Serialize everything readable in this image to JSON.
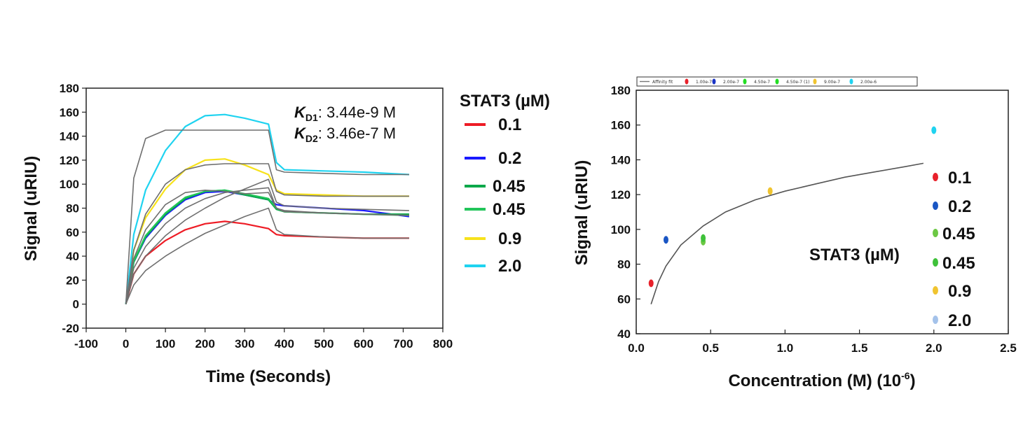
{
  "chart_data": [
    {
      "type": "line",
      "title": "",
      "xlabel": "Time (Seconds)",
      "ylabel": "Signal (uRIU)",
      "xlim": [
        -100,
        800
      ],
      "ylim": [
        -20,
        180
      ],
      "x_ticks": [
        "-100",
        "0",
        "100",
        "200",
        "300",
        "400",
        "500",
        "600",
        "700",
        "800"
      ],
      "y_ticks": [
        "-20",
        "0",
        "20",
        "40",
        "60",
        "80",
        "100",
        "120",
        "140",
        "160",
        "180"
      ],
      "legend_title": "STAT3 (µM)",
      "annotations": {
        "kd1_symbol": "K",
        "kd1_sub": "D1",
        "kd1_value": ": 3.44e-9 M",
        "kd2_symbol": "K",
        "kd2_sub": "D2",
        "kd2_value": ": 3.46e-7 M"
      },
      "injection_end": 360,
      "series": [
        {
          "name": "0.1",
          "color": "#ee1c25",
          "x": [
            0,
            20,
            50,
            100,
            150,
            200,
            250,
            300,
            360,
            380,
            400,
            500,
            600,
            715
          ],
          "values": [
            0,
            25,
            40,
            53,
            62,
            67,
            69,
            67,
            63,
            58,
            57,
            56,
            55,
            55
          ]
        },
        {
          "name": "0.2",
          "color": "#1a1aff",
          "x": [
            0,
            20,
            50,
            100,
            150,
            200,
            250,
            300,
            360,
            380,
            400,
            500,
            600,
            715
          ],
          "values": [
            0,
            35,
            55,
            74,
            87,
            93,
            94,
            91,
            87,
            83,
            82,
            80,
            78,
            73
          ]
        },
        {
          "name": "0.45",
          "color": "#0aa84a",
          "x": [
            0,
            20,
            50,
            100,
            150,
            200,
            250,
            300,
            360,
            380,
            400,
            500,
            600,
            715
          ],
          "values": [
            0,
            35,
            56,
            75,
            88,
            94,
            95,
            91,
            87,
            79,
            77,
            76,
            75,
            75
          ]
        },
        {
          "name": "0.45",
          "color": "#22c55a",
          "x": [
            0,
            20,
            50,
            100,
            150,
            200,
            250,
            300,
            360,
            380,
            400,
            500,
            600,
            715
          ],
          "values": [
            0,
            36,
            57,
            76,
            89,
            94,
            95,
            92,
            88,
            80,
            77,
            76,
            75,
            74
          ]
        },
        {
          "name": "0.9",
          "color": "#f7e21b",
          "x": [
            0,
            20,
            50,
            100,
            150,
            200,
            250,
            300,
            360,
            380,
            400,
            500,
            600,
            715
          ],
          "values": [
            0,
            45,
            72,
            96,
            112,
            120,
            121,
            116,
            108,
            95,
            92,
            91,
            90,
            90
          ]
        },
        {
          "name": "2.0",
          "color": "#1fd3f0",
          "x": [
            0,
            20,
            50,
            100,
            150,
            200,
            250,
            300,
            360,
            380,
            400,
            500,
            600,
            715
          ],
          "values": [
            0,
            58,
            95,
            128,
            148,
            157,
            158,
            155,
            150,
            118,
            112,
            111,
            110,
            108
          ]
        }
      ],
      "fit_curves": [
        {
          "x": [
            0,
            20,
            50,
            100,
            150,
            200,
            250,
            300,
            360,
            380,
            400,
            500,
            600,
            715
          ],
          "values": [
            0,
            105,
            138,
            145,
            145,
            145,
            145,
            145,
            145,
            112,
            110,
            109,
            108,
            108
          ]
        },
        {
          "x": [
            0,
            20,
            50,
            100,
            150,
            200,
            250,
            300,
            360,
            380,
            400,
            500,
            600,
            715
          ],
          "values": [
            0,
            45,
            75,
            100,
            112,
            116,
            117,
            117,
            117,
            94,
            91,
            90,
            90,
            90
          ]
        },
        {
          "x": [
            0,
            20,
            50,
            100,
            150,
            200,
            250,
            300,
            360,
            380,
            400,
            500,
            600,
            715
          ],
          "values": [
            0,
            38,
            62,
            83,
            93,
            95,
            94,
            92,
            93,
            80,
            78,
            76,
            75,
            74
          ]
        },
        {
          "x": [
            0,
            20,
            50,
            100,
            150,
            200,
            250,
            300,
            360,
            380,
            400,
            500,
            600,
            715
          ],
          "values": [
            0,
            30,
            48,
            67,
            80,
            88,
            93,
            95,
            97,
            80,
            77,
            76,
            75,
            74
          ]
        },
        {
          "x": [
            0,
            20,
            50,
            100,
            150,
            200,
            250,
            300,
            360,
            380,
            400,
            500,
            600,
            715
          ],
          "values": [
            0,
            25,
            40,
            57,
            70,
            80,
            89,
            96,
            104,
            85,
            82,
            80,
            79,
            78
          ]
        },
        {
          "x": [
            0,
            20,
            50,
            100,
            150,
            200,
            250,
            300,
            360,
            380,
            400,
            500,
            600,
            715
          ],
          "values": [
            0,
            16,
            28,
            40,
            50,
            59,
            66,
            73,
            80,
            62,
            58,
            56,
            55,
            55
          ]
        }
      ]
    },
    {
      "type": "scatter",
      "title": "",
      "xlabel": "Concentration (M) (10",
      "xlabel_exp": "-6",
      "xlabel_end": ")",
      "ylabel": "Signal (uRIU)",
      "xlim": [
        0.0,
        2.5
      ],
      "ylim": [
        40,
        180
      ],
      "x_ticks": [
        "0.0",
        "0.5",
        "1.0",
        "1.5",
        "2.0",
        "2.5"
      ],
      "y_ticks": [
        "40",
        "60",
        "80",
        "100",
        "120",
        "140",
        "160",
        "180"
      ],
      "legend_title": "STAT3 (µM)",
      "series": [
        {
          "name": "0.1",
          "color": "#e8212b",
          "x": 0.1,
          "y": 69
        },
        {
          "name": "0.2",
          "color": "#1a56c4",
          "x": 0.2,
          "y": 94
        },
        {
          "name": "0.45",
          "color": "#6cc844",
          "x": 0.45,
          "y": 93
        },
        {
          "name": "0.45",
          "color": "#3fc13a",
          "x": 0.45,
          "y": 95
        },
        {
          "name": "0.9",
          "color": "#f0c430",
          "x": 0.9,
          "y": 122
        },
        {
          "name": "2.0",
          "color": "#a4c2ea",
          "x": 2.0,
          "y": 157
        }
      ],
      "marker_color_2uM": "#1fd3f0",
      "affinity_fit": {
        "x": [
          0.1,
          0.15,
          0.2,
          0.3,
          0.45,
          0.6,
          0.8,
          1.0,
          1.2,
          1.4,
          1.6,
          1.8,
          1.93
        ],
        "y": [
          57,
          70,
          79,
          91,
          102,
          110,
          117,
          122,
          126,
          130,
          133,
          136,
          138
        ]
      },
      "mini_legend": [
        {
          "label": "Affinity fit",
          "color": "#777777",
          "type": "line"
        },
        {
          "label": "1.00e-7",
          "color": "#e8212b",
          "type": "dot"
        },
        {
          "label": "2.00e-7",
          "color": "#1a33c4",
          "type": "dot"
        },
        {
          "label": "4.50e-7",
          "color": "#22dd22",
          "type": "dot"
        },
        {
          "label": "4.50e-7 (1)",
          "color": "#22dd22",
          "type": "dot"
        },
        {
          "label": "9.00e-7",
          "color": "#f0c430",
          "type": "dot"
        },
        {
          "label": "2.00e-6",
          "color": "#1fd3f0",
          "type": "dot"
        }
      ]
    }
  ]
}
